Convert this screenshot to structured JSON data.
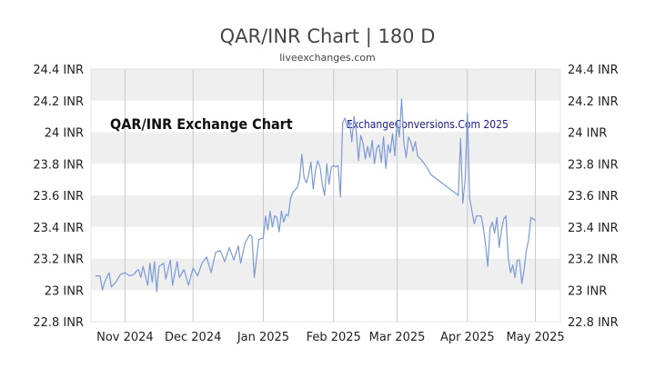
{
  "chart_data": {
    "type": "line",
    "title": "QAR/INR Chart | 180 D",
    "subtitle": "liveexchanges.com",
    "annotations": [
      "QAR/INR Exchange Chart",
      "ExchangeConversions.Com 2025"
    ],
    "y_tick_labels": [
      "22.8 INR",
      "23 INR",
      "23.2 INR",
      "23.4 INR",
      "23.6 INR",
      "23.8 INR",
      "24 INR",
      "24.2 INR",
      "24.4 INR"
    ],
    "y_ticks": [
      22.8,
      23.0,
      23.2,
      23.4,
      23.6,
      23.8,
      24.0,
      24.2,
      24.4
    ],
    "ylim": [
      22.8,
      24.4
    ],
    "x_tick_labels": [
      "Nov 2024",
      "Dec 2024",
      "Jan 2025",
      "Feb 2025",
      "Mar 2025",
      "Apr 2025",
      "May 2025"
    ],
    "x_ticks": [
      "2024-11-01",
      "2024-12-01",
      "2025-01-01",
      "2025-02-01",
      "2025-03-01",
      "2025-04-01",
      "2025-05-01"
    ],
    "xlim": [
      "2024-10-17",
      "2025-05-12"
    ],
    "grid": "horizontal bands and vertical month lines",
    "line_color": "#7b9ad8",
    "band_color": "#efefef",
    "series": [
      {
        "values": [
          [
            "2024-10-19",
            23.09
          ],
          [
            "2024-10-21",
            23.09
          ],
          [
            "2024-10-22",
            23.0
          ],
          [
            "2024-10-23",
            23.05
          ],
          [
            "2024-10-25",
            23.11
          ],
          [
            "2024-10-26",
            23.02
          ],
          [
            "2024-10-28",
            23.05
          ],
          [
            "2024-10-30",
            23.1
          ],
          [
            "2024-11-01",
            23.11
          ],
          [
            "2024-11-03",
            23.09
          ],
          [
            "2024-11-05",
            23.1
          ],
          [
            "2024-11-06",
            23.12
          ],
          [
            "2024-11-07",
            23.13
          ],
          [
            "2024-11-08",
            23.08
          ],
          [
            "2024-11-09",
            23.15
          ],
          [
            "2024-11-11",
            23.03
          ],
          [
            "2024-11-12",
            23.17
          ],
          [
            "2024-11-13",
            23.05
          ],
          [
            "2024-11-14",
            23.18
          ],
          [
            "2024-11-15",
            22.99
          ],
          [
            "2024-11-16",
            23.15
          ],
          [
            "2024-11-18",
            23.17
          ],
          [
            "2024-11-19",
            23.07
          ],
          [
            "2024-11-21",
            23.19
          ],
          [
            "2024-11-22",
            23.03
          ],
          [
            "2024-11-24",
            23.18
          ],
          [
            "2024-11-25",
            23.08
          ],
          [
            "2024-11-27",
            23.13
          ],
          [
            "2024-11-29",
            23.03
          ],
          [
            "2024-12-01",
            23.14
          ],
          [
            "2024-12-03",
            23.09
          ],
          [
            "2024-12-05",
            23.17
          ],
          [
            "2024-12-07",
            23.21
          ],
          [
            "2024-12-09",
            23.11
          ],
          [
            "2024-12-11",
            23.24
          ],
          [
            "2024-12-13",
            23.25
          ],
          [
            "2024-12-15",
            23.18
          ],
          [
            "2024-12-17",
            23.27
          ],
          [
            "2024-12-19",
            23.19
          ],
          [
            "2024-12-21",
            23.28
          ],
          [
            "2024-12-22",
            23.17
          ],
          [
            "2024-12-24",
            23.3
          ],
          [
            "2024-12-26",
            23.35
          ],
          [
            "2024-12-27",
            23.34
          ],
          [
            "2024-12-28",
            23.08
          ],
          [
            "2024-12-30",
            23.32
          ],
          [
            "2025-01-01",
            23.33
          ],
          [
            "2025-01-02",
            23.47
          ],
          [
            "2025-01-03",
            23.38
          ],
          [
            "2025-01-04",
            23.5
          ],
          [
            "2025-01-05",
            23.4
          ],
          [
            "2025-01-06",
            23.47
          ],
          [
            "2025-01-07",
            23.46
          ],
          [
            "2025-01-08",
            23.37
          ],
          [
            "2025-01-09",
            23.5
          ],
          [
            "2025-01-10",
            23.43
          ],
          [
            "2025-01-11",
            23.48
          ],
          [
            "2025-01-12",
            23.47
          ],
          [
            "2025-01-13",
            23.58
          ],
          [
            "2025-01-14",
            23.62
          ],
          [
            "2025-01-16",
            23.65
          ],
          [
            "2025-01-17",
            23.7
          ],
          [
            "2025-01-18",
            23.86
          ],
          [
            "2025-01-19",
            23.71
          ],
          [
            "2025-01-20",
            23.68
          ],
          [
            "2025-01-21",
            23.73
          ],
          [
            "2025-01-22",
            23.81
          ],
          [
            "2025-01-23",
            23.64
          ],
          [
            "2025-01-24",
            23.76
          ],
          [
            "2025-01-25",
            23.82
          ],
          [
            "2025-01-26",
            23.78
          ],
          [
            "2025-01-27",
            23.67
          ],
          [
            "2025-01-28",
            23.6
          ],
          [
            "2025-01-29",
            23.8
          ],
          [
            "2025-01-30",
            23.67
          ],
          [
            "2025-01-31",
            23.78
          ],
          [
            "2025-02-01",
            23.79
          ],
          [
            "2025-02-02",
            23.78
          ],
          [
            "2025-02-03",
            23.79
          ],
          [
            "2025-02-04",
            23.59
          ],
          [
            "2025-02-05",
            24.06
          ],
          [
            "2025-02-06",
            24.09
          ],
          [
            "2025-02-07",
            24.03
          ],
          [
            "2025-02-08",
            24.07
          ],
          [
            "2025-02-09",
            23.94
          ],
          [
            "2025-02-10",
            24.1
          ],
          [
            "2025-02-11",
            24.0
          ],
          [
            "2025-02-12",
            23.82
          ],
          [
            "2025-02-13",
            23.98
          ],
          [
            "2025-02-14",
            23.93
          ],
          [
            "2025-02-15",
            23.83
          ],
          [
            "2025-02-16",
            23.91
          ],
          [
            "2025-02-17",
            23.84
          ],
          [
            "2025-02-18",
            23.95
          ],
          [
            "2025-02-19",
            23.8
          ],
          [
            "2025-02-20",
            23.9
          ],
          [
            "2025-02-21",
            23.92
          ],
          [
            "2025-02-22",
            23.81
          ],
          [
            "2025-02-23",
            23.97
          ],
          [
            "2025-02-24",
            23.77
          ],
          [
            "2025-02-25",
            23.92
          ],
          [
            "2025-02-26",
            23.87
          ],
          [
            "2025-02-27",
            23.99
          ],
          [
            "2025-02-28",
            23.85
          ],
          [
            "2025-03-01",
            24.07
          ],
          [
            "2025-03-02",
            23.97
          ],
          [
            "2025-03-03",
            24.21
          ],
          [
            "2025-03-04",
            23.93
          ],
          [
            "2025-03-05",
            23.84
          ],
          [
            "2025-03-06",
            23.97
          ],
          [
            "2025-03-07",
            23.94
          ],
          [
            "2025-03-08",
            23.88
          ],
          [
            "2025-03-09",
            23.94
          ],
          [
            "2025-03-10",
            23.85
          ],
          [
            "2025-03-12",
            23.82
          ],
          [
            "2025-03-14",
            23.78
          ],
          [
            "2025-03-16",
            23.73
          ],
          [
            "2025-03-28",
            23.6
          ],
          [
            "2025-03-29",
            23.96
          ],
          [
            "2025-03-30",
            23.55
          ],
          [
            "2025-03-31",
            23.7
          ],
          [
            "2025-04-01",
            24.12
          ],
          [
            "2025-04-02",
            23.58
          ],
          [
            "2025-04-03",
            23.5
          ],
          [
            "2025-04-04",
            23.42
          ],
          [
            "2025-04-05",
            23.47
          ],
          [
            "2025-04-07",
            23.47
          ],
          [
            "2025-04-08",
            23.4
          ],
          [
            "2025-04-09",
            23.29
          ],
          [
            "2025-04-10",
            23.15
          ],
          [
            "2025-04-11",
            23.39
          ],
          [
            "2025-04-12",
            23.43
          ],
          [
            "2025-04-13",
            23.36
          ],
          [
            "2025-04-14",
            23.46
          ],
          [
            "2025-04-15",
            23.27
          ],
          [
            "2025-04-16",
            23.38
          ],
          [
            "2025-04-17",
            23.45
          ],
          [
            "2025-04-18",
            23.47
          ],
          [
            "2025-04-19",
            23.2
          ],
          [
            "2025-04-20",
            23.11
          ],
          [
            "2025-04-21",
            23.16
          ],
          [
            "2025-04-22",
            23.08
          ],
          [
            "2025-04-23",
            23.19
          ],
          [
            "2025-04-24",
            23.19
          ],
          [
            "2025-04-25",
            23.04
          ],
          [
            "2025-04-26",
            23.13
          ],
          [
            "2025-04-27",
            23.25
          ],
          [
            "2025-04-28",
            23.32
          ],
          [
            "2025-04-29",
            23.46
          ],
          [
            "2025-05-01",
            23.44
          ]
        ]
      }
    ]
  }
}
